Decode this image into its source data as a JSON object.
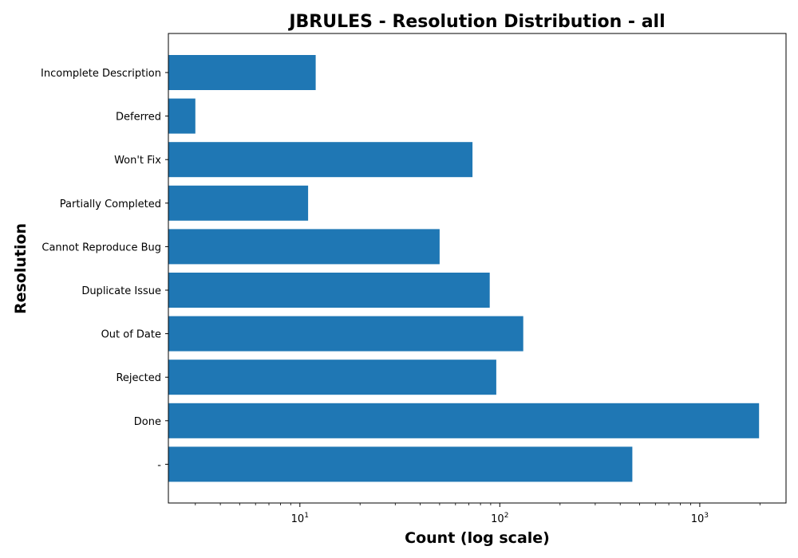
{
  "chart_data": {
    "type": "bar",
    "orientation": "horizontal",
    "title": "JBRULES - Resolution Distribution - all",
    "xlabel": "Count (log scale)",
    "ylabel": "Resolution",
    "xscale": "log",
    "xlim": [
      2.2,
      2700
    ],
    "xticks": [
      {
        "value": 10,
        "base": "10",
        "exp": "1"
      },
      {
        "value": 100,
        "base": "10",
        "exp": "2"
      },
      {
        "value": 1000,
        "base": "10",
        "exp": "3"
      }
    ],
    "categories": [
      "Incomplete Description",
      "Deferred",
      "Won't Fix",
      "Partially Completed",
      "Cannot Reproduce Bug",
      "Duplicate Issue",
      "Out of Date",
      "Rejected",
      "Done",
      "-"
    ],
    "values": [
      12,
      3,
      73,
      11,
      50,
      89,
      131,
      96,
      1980,
      460
    ],
    "bar_color": "#1f77b4",
    "grid": false,
    "legend": "none"
  }
}
